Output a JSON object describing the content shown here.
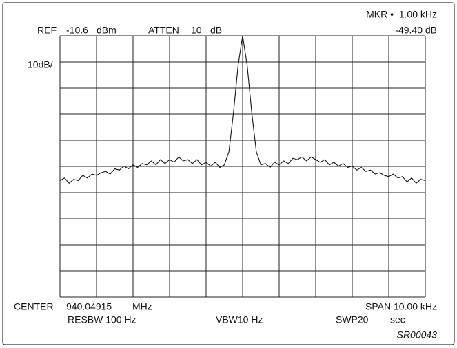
{
  "chart_data": {
    "type": "line",
    "ref_label": "REF",
    "ref_value": "-10.6",
    "ref_unit": "dBm",
    "atten_label": "ATTEN",
    "atten_value": "10",
    "atten_unit": "dB",
    "marker_freq": "MKR •  1.00 kHz",
    "marker_level": "-49.40 dB",
    "scale_label": "10dB/",
    "center_label": "CENTER",
    "center_value": "940.04915",
    "center_unit": "MHz",
    "span_label": "SPAN 10.00 kHz",
    "resbw_label": "RESBW 100 Hz",
    "vbw_label": "VBW10 Hz",
    "swp_label": "SWP20",
    "swp_unit": "sec",
    "figure_id": "SR00043",
    "color": "#111111",
    "grid": true,
    "xlim": [
      -5,
      5
    ],
    "ylim": [
      -110.6,
      -10.6
    ],
    "xticks": [
      -5,
      -4,
      -3,
      -2,
      -1,
      0,
      1,
      2,
      3,
      4,
      5
    ],
    "yticks": [
      -110.6,
      -100.6,
      -90.6,
      -80.6,
      -70.6,
      -60.6,
      -50.6,
      -40.6,
      -30.6,
      -20.6,
      -10.6
    ],
    "x": [
      -5,
      -4.875,
      -4.75,
      -4.625,
      -4.5,
      -4.375,
      -4.25,
      -4.125,
      -4,
      -3.875,
      -3.75,
      -3.625,
      -3.5,
      -3.375,
      -3.25,
      -3.125,
      -3,
      -2.875,
      -2.75,
      -2.625,
      -2.5,
      -2.375,
      -2.25,
      -2.125,
      -2,
      -1.875,
      -1.75,
      -1.625,
      -1.5,
      -1.375,
      -1.25,
      -1.125,
      -1,
      -0.875,
      -0.75,
      -0.625,
      -0.5,
      -0.375,
      -0.25,
      -0.125,
      0,
      0.125,
      0.25,
      0.375,
      0.5,
      0.625,
      0.75,
      0.875,
      1,
      1.125,
      1.25,
      1.375,
      1.5,
      1.625,
      1.75,
      1.875,
      2,
      2.125,
      2.25,
      2.375,
      2.5,
      2.625,
      2.75,
      2.875,
      3,
      3.125,
      3.25,
      3.375,
      3.5,
      3.625,
      3.75,
      3.875,
      4,
      4.125,
      4.25,
      4.375,
      4.5,
      4.625,
      4.75,
      4.875,
      5
    ],
    "values": [
      -66,
      -65,
      -67,
      -65.5,
      -66,
      -64,
      -65,
      -63.5,
      -64,
      -63,
      -62.5,
      -63.5,
      -61.5,
      -62,
      -60.5,
      -61.5,
      -60,
      -61,
      -59.5,
      -60,
      -58.5,
      -60,
      -58,
      -59.5,
      -58,
      -59,
      -57,
      -58.5,
      -58,
      -59.5,
      -58,
      -60,
      -59,
      -60.5,
      -59,
      -61,
      -60,
      -55,
      -40,
      -22,
      -10.6,
      -22,
      -40,
      -55,
      -60,
      -59.5,
      -61,
      -59,
      -60,
      -58.5,
      -59.5,
      -57.5,
      -58,
      -57,
      -58.5,
      -57,
      -58,
      -59,
      -58,
      -60,
      -59,
      -60.5,
      -59.5,
      -61,
      -60.5,
      -62,
      -61,
      -62.5,
      -62,
      -63.5,
      -63,
      -64,
      -64.5,
      -63.5,
      -65,
      -64.5,
      -66.5,
      -65,
      -67,
      -65.5,
      -66
    ]
  }
}
